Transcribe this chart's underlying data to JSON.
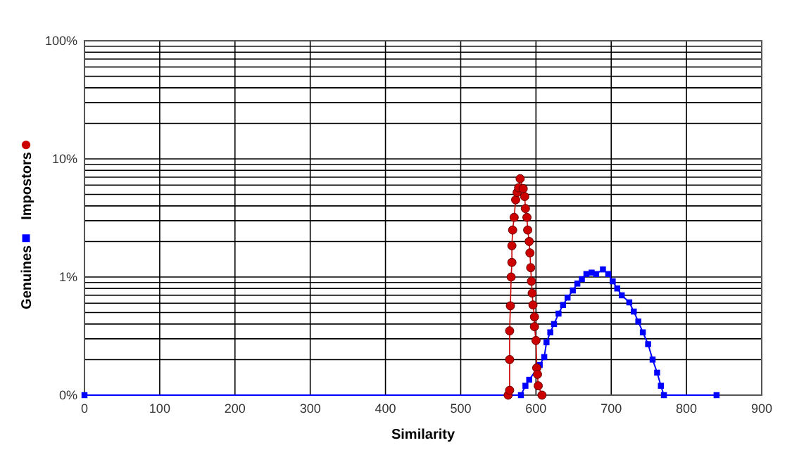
{
  "chart_data": {
    "type": "line",
    "xlabel": "Similarity",
    "xlim": [
      0,
      900
    ],
    "xticks": [
      0,
      100,
      200,
      300,
      400,
      500,
      600,
      700,
      800,
      900
    ],
    "ylim": [
      0.1,
      100
    ],
    "log": "y",
    "grid": true,
    "legend": "left",
    "line_style": "solid",
    "yticks": [
      {
        "value": 0.1,
        "label": "0%"
      },
      {
        "value": 0.2,
        "label": null
      },
      {
        "value": 0.3,
        "label": null
      },
      {
        "value": 0.4,
        "label": null
      },
      {
        "value": 0.5,
        "label": null
      },
      {
        "value": 0.6,
        "label": null
      },
      {
        "value": 0.7,
        "label": null
      },
      {
        "value": 0.8,
        "label": null
      },
      {
        "value": 0.9,
        "label": null
      },
      {
        "value": 1,
        "label": "1%"
      },
      {
        "value": 2,
        "label": null
      },
      {
        "value": 3,
        "label": null
      },
      {
        "value": 4,
        "label": null
      },
      {
        "value": 5,
        "label": null
      },
      {
        "value": 6,
        "label": null
      },
      {
        "value": 7,
        "label": null
      },
      {
        "value": 8,
        "label": null
      },
      {
        "value": 9,
        "label": null
      },
      {
        "value": 10,
        "label": "10%"
      },
      {
        "value": 20,
        "label": null
      },
      {
        "value": 30,
        "label": null
      },
      {
        "value": 40,
        "label": null
      },
      {
        "value": 50,
        "label": null
      },
      {
        "value": 60,
        "label": null
      },
      {
        "value": 70,
        "label": null
      },
      {
        "value": 80,
        "label": null
      },
      {
        "value": 90,
        "label": null
      },
      {
        "value": 100,
        "label": "100%"
      }
    ],
    "series": [
      {
        "name": "Genuines",
        "color": "#0000ff",
        "marker": "square",
        "x": [
          0,
          580,
          586,
          591,
          605,
          611,
          614,
          619,
          624,
          630,
          636,
          642,
          649,
          655,
          661,
          667,
          674,
          680,
          689,
          696,
          702,
          708,
          714,
          724,
          730,
          736,
          742,
          749,
          755,
          761,
          766,
          770,
          840
        ],
        "values": [
          0.1,
          0.1,
          0.12,
          0.135,
          0.18,
          0.21,
          0.28,
          0.34,
          0.4,
          0.49,
          0.58,
          0.67,
          0.77,
          0.88,
          0.96,
          1.06,
          1.09,
          1.06,
          1.16,
          1.06,
          0.92,
          0.8,
          0.7,
          0.61,
          0.51,
          0.42,
          0.34,
          0.27,
          0.2,
          0.155,
          0.12,
          0.1,
          0.1
        ]
      },
      {
        "name": "Impostors",
        "color": "#cc0000",
        "marker": "circle",
        "x": [
          563,
          565,
          565,
          565,
          566,
          567,
          568,
          568,
          569,
          571,
          573,
          575,
          577,
          579,
          583,
          585,
          586,
          588,
          589,
          591,
          592,
          593,
          594,
          595,
          596,
          598,
          598,
          600,
          601,
          602,
          603,
          608
        ],
        "values": [
          0.1,
          0.11,
          0.2,
          0.35,
          0.57,
          1.0,
          1.33,
          1.84,
          2.5,
          3.2,
          4.5,
          5.2,
          5.7,
          6.8,
          5.6,
          4.8,
          3.8,
          3.2,
          2.5,
          2.0,
          1.6,
          1.2,
          0.92,
          0.73,
          0.58,
          0.46,
          0.38,
          0.29,
          0.17,
          0.15,
          0.12,
          0.1
        ]
      }
    ]
  }
}
